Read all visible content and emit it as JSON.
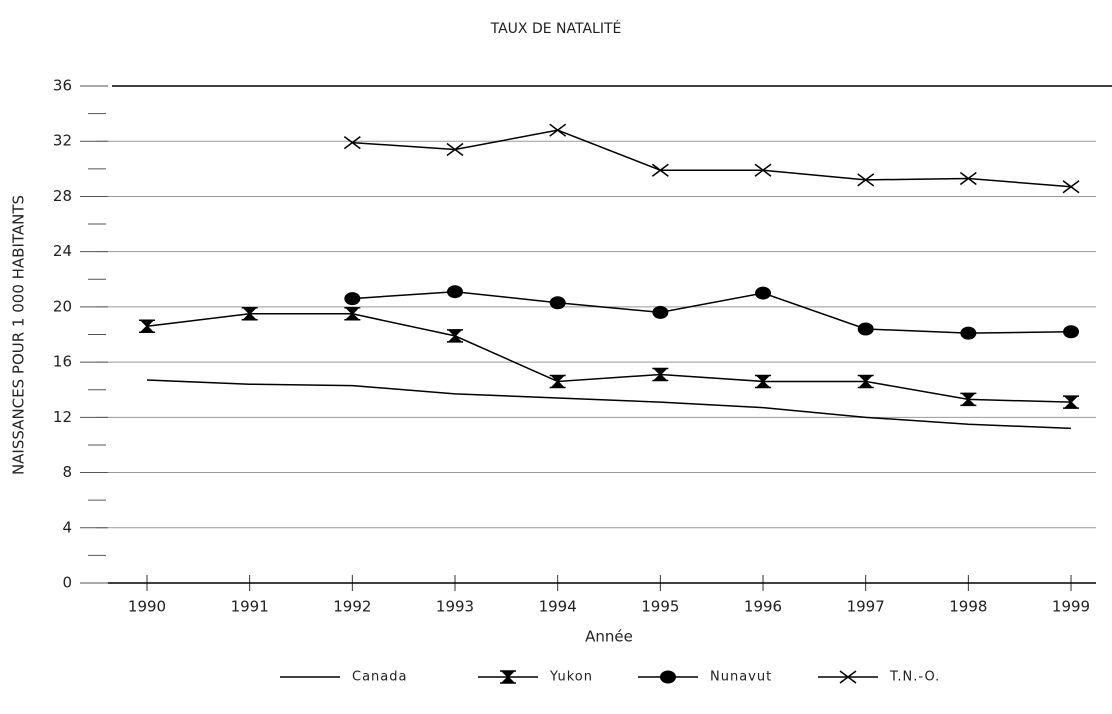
{
  "chart_data": {
    "type": "line",
    "title": "TAUX DE NATALITÉ",
    "x_label": "Année",
    "y_label": "NAISSANCES POUR 1 000 HABITANTS",
    "categories": [
      "1990",
      "1991",
      "1992",
      "1993",
      "1994",
      "1995",
      "1996",
      "1997",
      "1998",
      "1999"
    ],
    "series": [
      {
        "name": "Canada",
        "color": "#000000",
        "marker": "none",
        "values": [
          14.7,
          14.4,
          14.3,
          13.7,
          13.4,
          13.1,
          12.7,
          12.0,
          11.5,
          11.2
        ]
      },
      {
        "name": "Yukon",
        "color": "#000000",
        "marker": "bowtie",
        "values": [
          18.6,
          19.5,
          19.5,
          17.9,
          14.6,
          15.1,
          14.6,
          14.6,
          13.3,
          13.1
        ]
      },
      {
        "name": "Nunavut",
        "color": "#000000",
        "marker": "circle",
        "values": [
          null,
          null,
          20.6,
          21.1,
          20.3,
          19.6,
          21.0,
          18.4,
          18.1,
          18.2
        ]
      },
      {
        "name": "T.N.-O.",
        "color": "#000000",
        "marker": "x",
        "values": [
          null,
          null,
          31.9,
          31.4,
          32.8,
          29.9,
          29.9,
          29.2,
          29.3,
          28.7
        ]
      }
    ],
    "ylim": [
      0,
      36
    ],
    "yticks": [
      0,
      4,
      8,
      12,
      16,
      20,
      24,
      28,
      32,
      36
    ],
    "minor_yticks": [
      2,
      6,
      10,
      14,
      18,
      22,
      26,
      30,
      34
    ],
    "grid": true,
    "legend": "bottom"
  }
}
